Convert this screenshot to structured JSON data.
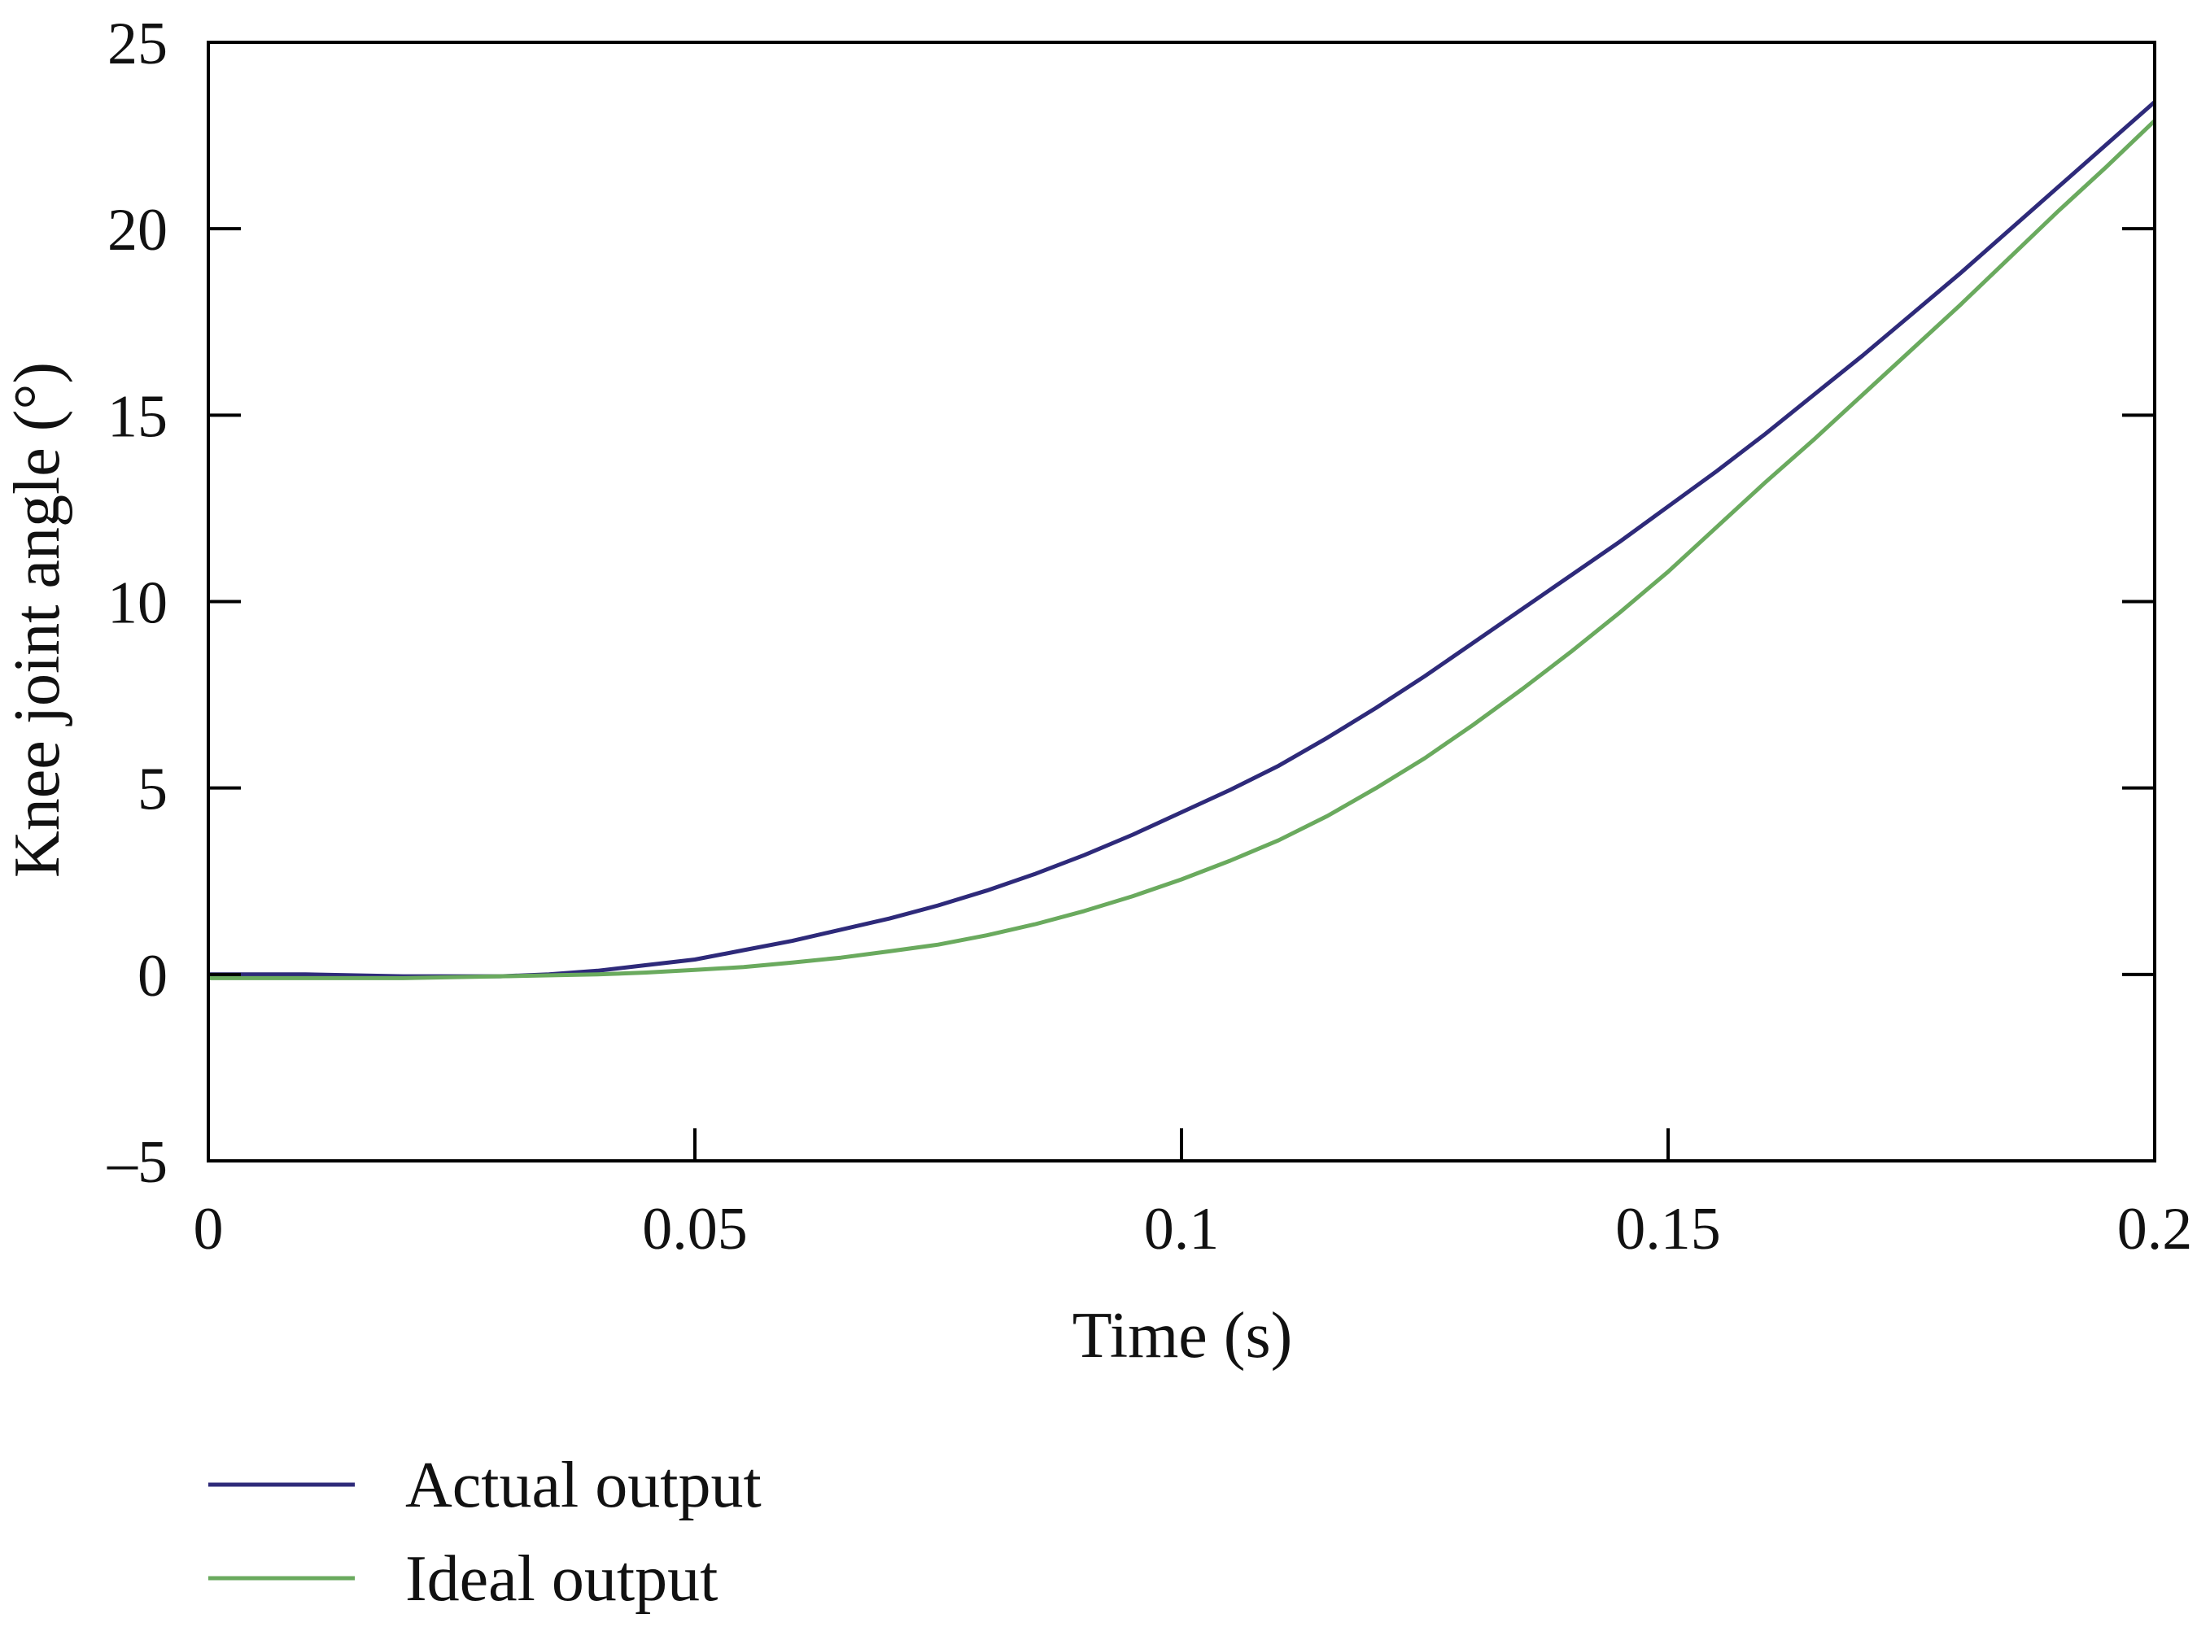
{
  "chart_data": {
    "type": "line",
    "title": "",
    "xlabel": "Time (s)",
    "ylabel": "Knee joint angle (°)",
    "xlim": [
      0,
      0.2
    ],
    "ylim": [
      -5,
      25
    ],
    "x_ticks": [
      0,
      0.05,
      0.1,
      0.15,
      0.2
    ],
    "x_tick_labels": [
      "0",
      "0.05",
      "0.1",
      "0.15",
      "0.2"
    ],
    "y_ticks": [
      -5,
      0,
      5,
      10,
      15,
      20,
      25
    ],
    "y_tick_labels": [
      "–5",
      "0",
      "5",
      "10",
      "15",
      "20",
      "25"
    ],
    "grid": false,
    "legend_position": "bottom-left, below plot",
    "series": [
      {
        "name": "Actual output",
        "color": "#2e2a7a",
        "points": [
          [
            0,
            0.0
          ],
          [
            0.01,
            0.0
          ],
          [
            0.02,
            -0.05
          ],
          [
            0.03,
            -0.05
          ],
          [
            0.035,
            0.0
          ],
          [
            0.04,
            0.1
          ],
          [
            0.045,
            0.25
          ],
          [
            0.05,
            0.4
          ],
          [
            0.055,
            0.65
          ],
          [
            0.06,
            0.9
          ],
          [
            0.065,
            1.2
          ],
          [
            0.07,
            1.5
          ],
          [
            0.075,
            1.85
          ],
          [
            0.08,
            2.25
          ],
          [
            0.085,
            2.7
          ],
          [
            0.09,
            3.2
          ],
          [
            0.095,
            3.75
          ],
          [
            0.1,
            4.35
          ],
          [
            0.105,
            4.95
          ],
          [
            0.11,
            5.6
          ],
          [
            0.115,
            6.35
          ],
          [
            0.12,
            7.15
          ],
          [
            0.125,
            8.0
          ],
          [
            0.13,
            8.9
          ],
          [
            0.135,
            9.8
          ],
          [
            0.14,
            10.7
          ],
          [
            0.145,
            11.6
          ],
          [
            0.15,
            12.55
          ],
          [
            0.155,
            13.5
          ],
          [
            0.16,
            14.5
          ],
          [
            0.165,
            15.55
          ],
          [
            0.17,
            16.6
          ],
          [
            0.175,
            17.7
          ],
          [
            0.18,
            18.8
          ],
          [
            0.185,
            19.95
          ],
          [
            0.19,
            21.1
          ],
          [
            0.195,
            22.25
          ],
          [
            0.2,
            23.4
          ]
        ]
      },
      {
        "name": "Ideal output",
        "color": "#6aaa5e",
        "points": [
          [
            0,
            -0.1
          ],
          [
            0.01,
            -0.1
          ],
          [
            0.02,
            -0.1
          ],
          [
            0.03,
            -0.05
          ],
          [
            0.04,
            0.0
          ],
          [
            0.045,
            0.05
          ],
          [
            0.05,
            0.12
          ],
          [
            0.055,
            0.2
          ],
          [
            0.06,
            0.32
          ],
          [
            0.065,
            0.45
          ],
          [
            0.07,
            0.62
          ],
          [
            0.075,
            0.8
          ],
          [
            0.08,
            1.05
          ],
          [
            0.085,
            1.35
          ],
          [
            0.09,
            1.7
          ],
          [
            0.095,
            2.1
          ],
          [
            0.1,
            2.55
          ],
          [
            0.105,
            3.05
          ],
          [
            0.11,
            3.6
          ],
          [
            0.115,
            4.25
          ],
          [
            0.12,
            5.0
          ],
          [
            0.125,
            5.8
          ],
          [
            0.13,
            6.7
          ],
          [
            0.135,
            7.65
          ],
          [
            0.14,
            8.65
          ],
          [
            0.145,
            9.7
          ],
          [
            0.15,
            10.8
          ],
          [
            0.155,
            12.0
          ],
          [
            0.16,
            13.2
          ],
          [
            0.165,
            14.35
          ],
          [
            0.17,
            15.55
          ],
          [
            0.175,
            16.75
          ],
          [
            0.18,
            17.95
          ],
          [
            0.185,
            19.2
          ],
          [
            0.19,
            20.45
          ],
          [
            0.195,
            21.65
          ],
          [
            0.2,
            22.9
          ]
        ]
      }
    ]
  }
}
